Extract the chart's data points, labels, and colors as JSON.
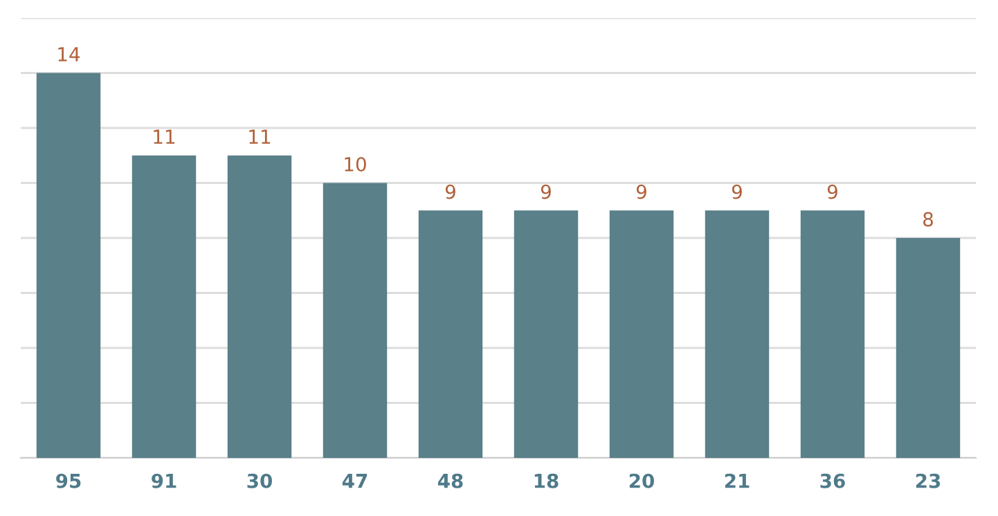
{
  "chart_data": {
    "type": "bar",
    "categories": [
      "95",
      "91",
      "30",
      "47",
      "48",
      "18",
      "20",
      "21",
      "36",
      "23"
    ],
    "values": [
      14,
      11,
      11,
      10,
      9,
      9,
      9,
      9,
      9,
      8
    ],
    "color": "#5a8089",
    "data_labels": true,
    "ylim": [
      0,
      16
    ],
    "yticks": [
      {
        "value": 0,
        "label": null
      },
      {
        "value": 2,
        "label": null
      },
      {
        "value": 4,
        "label": null
      },
      {
        "value": 6,
        "label": null
      },
      {
        "value": 8,
        "label": null
      },
      {
        "value": 10,
        "label": null
      },
      {
        "value": 12,
        "label": null
      },
      {
        "value": 14,
        "label": null
      },
      {
        "value": 16,
        "label": null
      }
    ],
    "grid": "y",
    "tick_labels": "x"
  }
}
